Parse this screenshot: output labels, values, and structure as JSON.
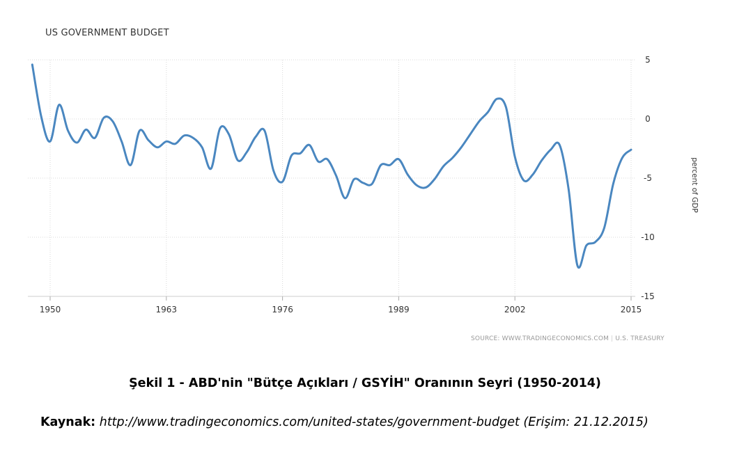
{
  "chart_data": {
    "type": "line",
    "title": "US GOVERNMENT BUDGET",
    "xlabel": "",
    "ylabel": "percent of GDP",
    "xlim": [
      1948.5,
      2015
    ],
    "ylim": [
      -15,
      5
    ],
    "x_ticks": [
      1950,
      1963,
      1976,
      1989,
      2002,
      2015
    ],
    "x_tick_labels": [
      "1950",
      "1963",
      "1976",
      "1989",
      "2002",
      "2015"
    ],
    "y_ticks": [
      5,
      0,
      -5,
      -10,
      -15
    ],
    "y_tick_labels": [
      "5",
      "0",
      "-5",
      "-10",
      "-15"
    ],
    "grid": true,
    "color": "#4a87c0",
    "series": [
      {
        "name": "US Government Budget (% of GDP)",
        "x": [
          1948,
          1949,
          1950,
          1951,
          1952,
          1953,
          1954,
          1955,
          1956,
          1957,
          1958,
          1959,
          1960,
          1961,
          1962,
          1963,
          1964,
          1965,
          1966,
          1967,
          1968,
          1969,
          1970,
          1971,
          1972,
          1973,
          1974,
          1975,
          1976,
          1977,
          1978,
          1979,
          1980,
          1981,
          1982,
          1983,
          1984,
          1985,
          1986,
          1987,
          1988,
          1989,
          1990,
          1991,
          1992,
          1993,
          1994,
          1995,
          1996,
          1997,
          1998,
          1999,
          2000,
          2001,
          2002,
          2003,
          2004,
          2005,
          2006,
          2007,
          2008,
          2009,
          2010,
          2011,
          2012,
          2013,
          2014,
          2015
        ],
        "values": [
          4.6,
          0.2,
          -1.9,
          1.2,
          -1.0,
          -2.0,
          -0.9,
          -1.6,
          0.1,
          -0.2,
          -1.9,
          -3.9,
          -1.0,
          -1.8,
          -2.4,
          -1.9,
          -2.1,
          -1.4,
          -1.6,
          -2.4,
          -4.2,
          -0.8,
          -1.3,
          -3.5,
          -2.8,
          -1.5,
          -1.0,
          -4.4,
          -5.3,
          -3.1,
          -2.9,
          -2.2,
          -3.6,
          -3.4,
          -4.8,
          -6.7,
          -5.1,
          -5.4,
          -5.5,
          -3.9,
          -3.9,
          -3.4,
          -4.7,
          -5.6,
          -5.8,
          -5.1,
          -4.0,
          -3.3,
          -2.4,
          -1.3,
          -0.2,
          0.6,
          1.7,
          1.0,
          -3.2,
          -5.2,
          -4.7,
          -3.5,
          -2.6,
          -2.2,
          -5.9,
          -12.4,
          -10.7,
          -10.4,
          -9.2,
          -5.5,
          -3.3,
          -2.6
        ]
      }
    ]
  },
  "source": {
    "prefix": "SOURCE: WWW.TRADINGECONOMICS.COM",
    "separator": "|",
    "suffix": "U.S. TREASURY"
  },
  "caption": "Şekil 1 - ABD'nin \"Bütçe Açıkları / GSYİH\" Oranının Seyri (1950-2014)",
  "reference": {
    "label": "Kaynak:",
    "url": "http://www.tradingeconomics.com/united-states/government-budget",
    "access": "(Erişim: 21.12.2015)"
  }
}
